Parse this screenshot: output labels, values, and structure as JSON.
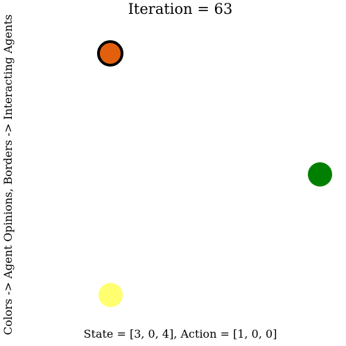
{
  "title": "Iteration = 63",
  "ylabel": "Colors -> Agent Opinions, Borders -> Interacting Agents",
  "xlabel": "State = [3, 0, 4], Action = [1, 0, 0]",
  "agents": [
    {
      "color": "#e2600d",
      "interacting": true
    },
    {
      "color": "#008000",
      "interacting": false
    },
    {
      "color": "#ffff70",
      "interacting": false
    }
  ]
}
